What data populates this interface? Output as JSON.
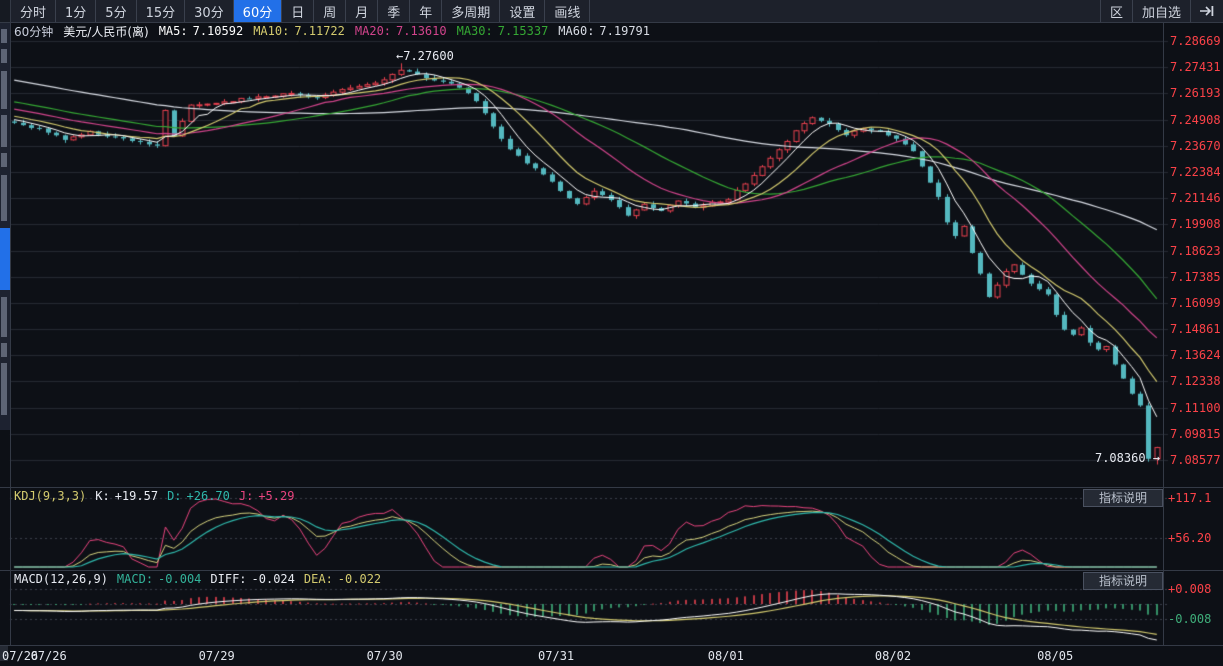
{
  "toolbar": {
    "left_items": [
      "分时",
      "1分",
      "5分",
      "15分",
      "30分",
      "60分",
      "日",
      "周",
      "月",
      "季",
      "年",
      "多周期",
      "设置",
      "画线"
    ],
    "active_item": "60分",
    "right_items": [
      "区",
      "加自选"
    ],
    "collapse_icon_name": "collapse-right-icon"
  },
  "chart_header": {
    "period": "60分钟",
    "symbol": "美元/人民币(离)",
    "ma_values": [
      {
        "label": "MA5:",
        "value": "7.10592",
        "color": "#ffffff"
      },
      {
        "label": "MA10:",
        "value": "7.11722",
        "color": "#d3ca6e"
      },
      {
        "label": "MA20:",
        "value": "7.13610",
        "color": "#d2448c"
      },
      {
        "label": "MA30:",
        "value": "7.15337",
        "color": "#35a834"
      },
      {
        "label": "MA60:",
        "value": "7.19791",
        "color": "#d8dce4"
      }
    ]
  },
  "price_axis": {
    "labels": [
      "7.28669",
      "7.27431",
      "7.26193",
      "7.24908",
      "7.23670",
      "7.22384",
      "7.21146",
      "7.19908",
      "7.18623",
      "7.17385",
      "7.16099",
      "7.14861",
      "7.13624",
      "7.12338",
      "7.11100",
      "7.09815",
      "7.08577"
    ],
    "color": "#fb4248"
  },
  "annotations": {
    "high": "7.27600",
    "low": "7.08360"
  },
  "kdj_panel": {
    "title": "KDJ(9,3,3)",
    "pairs": [
      {
        "label": "K:",
        "value": "+19.57",
        "color": "#e8ebf2"
      },
      {
        "label": "D:",
        "value": "+26.70",
        "color": "#2fb8ac"
      },
      {
        "label": "J:",
        "value": "+5.29",
        "color": "#e8447e"
      }
    ],
    "title_color": "#d3ca6e",
    "axis_labels": [
      {
        "text": "+117.1",
        "color": "#fb4248"
      },
      {
        "text": "+56.20",
        "color": "#fb4248"
      }
    ],
    "button": "指标说明"
  },
  "macd_panel": {
    "title": "MACD(12,26,9)",
    "pairs": [
      {
        "label": "MACD:",
        "value": "-0.004",
        "color": "#33b39a"
      },
      {
        "label": "DIFF:",
        "value": "-0.024",
        "color": "#e8ebf2"
      },
      {
        "label": "DEA:",
        "value": "-0.022",
        "color": "#d3ca6e"
      }
    ],
    "title_color": "#e8ebf2",
    "axis_labels": [
      {
        "text": "+0.008",
        "color": "#fb4248"
      },
      {
        "text": "-0.008",
        "color": "#3fae7a"
      }
    ],
    "button": "指标说明"
  },
  "time_axis": {
    "labels": [
      "07/26",
      "07/26",
      "07/29",
      "07/30",
      "07/31",
      "08/01",
      "08/02",
      "08/05"
    ]
  },
  "colors": {
    "up": "#e8414f",
    "down": "#54b8bf",
    "background": "#0d1016",
    "grid": "#262a33",
    "ma5": "#ffffff",
    "ma10": "#d3ca6e",
    "ma20": "#d2448c",
    "ma30": "#35a834",
    "ma60": "#d8dce4",
    "k": "#d6d37e",
    "d": "#2fb8ac",
    "j": "#e8447e",
    "diff": "#ffffff",
    "dea": "#d3ca6e",
    "hist_pos": "#e8414f",
    "hist_neg": "#3fae7a",
    "axis_red": "#fb4248",
    "accent_blue": "#2270e8"
  },
  "chart_data": {
    "type": "candlestick",
    "title": "美元/人民币(离) 60分钟",
    "interval": "60分",
    "x_dates": [
      "07/26",
      "07/26",
      "07/29",
      "07/30",
      "07/31",
      "08/01",
      "08/02",
      "08/05"
    ],
    "y_axis_ticks": [
      7.28669,
      7.27431,
      7.26193,
      7.24908,
      7.2367,
      7.22384,
      7.21146,
      7.19908,
      7.18623,
      7.17385,
      7.16099,
      7.14861,
      7.13624,
      7.12338,
      7.111,
      7.09815,
      7.08577
    ],
    "bars_total": 137,
    "bars_per_day": 20,
    "high_annotation": 7.276,
    "low_annotation": 7.0836,
    "close_anchors": [
      [
        0,
        7.2475
      ],
      [
        3,
        7.2445
      ],
      [
        6,
        7.2395
      ],
      [
        9,
        7.243
      ],
      [
        12,
        7.2405
      ],
      [
        15,
        7.2385
      ],
      [
        17,
        7.236
      ],
      [
        18,
        7.253
      ],
      [
        19,
        7.241
      ],
      [
        21,
        7.2555
      ],
      [
        25,
        7.2575
      ],
      [
        29,
        7.26
      ],
      [
        33,
        7.2615
      ],
      [
        36,
        7.2595
      ],
      [
        40,
        7.264
      ],
      [
        43,
        7.2665
      ],
      [
        46,
        7.2725
      ],
      [
        48,
        7.2705
      ],
      [
        51,
        7.267
      ],
      [
        53,
        7.2645
      ],
      [
        55,
        7.258
      ],
      [
        57,
        7.2455
      ],
      [
        59,
        7.235
      ],
      [
        61,
        7.228
      ],
      [
        63,
        7.223
      ],
      [
        65,
        7.215
      ],
      [
        67,
        7.2085
      ],
      [
        69,
        7.215
      ],
      [
        71,
        7.21
      ],
      [
        73,
        7.2035
      ],
      [
        75,
        7.208
      ],
      [
        77,
        7.205
      ],
      [
        79,
        7.2105
      ],
      [
        81,
        7.207
      ],
      [
        83,
        7.209
      ],
      [
        85,
        7.211
      ],
      [
        87,
        7.218
      ],
      [
        89,
        7.226
      ],
      [
        91,
        7.234
      ],
      [
        93,
        7.244
      ],
      [
        95,
        7.25
      ],
      [
        97,
        7.247
      ],
      [
        99,
        7.242
      ],
      [
        101,
        7.245
      ],
      [
        103,
        7.243
      ],
      [
        105,
        7.24
      ],
      [
        107,
        7.234
      ],
      [
        108,
        7.226
      ],
      [
        109,
        7.219
      ],
      [
        110,
        7.212
      ],
      [
        111,
        7.2
      ],
      [
        112,
        7.193
      ],
      [
        113,
        7.198
      ],
      [
        114,
        7.185
      ],
      [
        115,
        7.175
      ],
      [
        116,
        7.1645
      ],
      [
        117,
        7.17
      ],
      [
        118,
        7.1765
      ],
      [
        119,
        7.179
      ],
      [
        120,
        7.175
      ],
      [
        121,
        7.17
      ],
      [
        122,
        7.168
      ],
      [
        123,
        7.165
      ],
      [
        124,
        7.155
      ],
      [
        125,
        7.148
      ],
      [
        126,
        7.1455
      ],
      [
        127,
        7.1495
      ],
      [
        128,
        7.1425
      ],
      [
        129,
        7.1385
      ],
      [
        130,
        7.1405
      ],
      [
        131,
        7.132
      ],
      [
        132,
        7.125
      ],
      [
        133,
        7.118
      ],
      [
        134,
        7.1115
      ],
      [
        135,
        7.0862
      ],
      [
        136,
        7.0915
      ]
    ],
    "ma_last": {
      "MA5": 7.10592,
      "MA10": 7.11722,
      "MA20": 7.1361,
      "MA30": 7.15337,
      "MA60": 7.19791
    },
    "kdj_last": {
      "K": 19.57,
      "D": 26.7,
      "J": 5.29
    },
    "kdj_axis_ticks": [
      117.1,
      56.2
    ],
    "macd_last": {
      "MACD": -0.004,
      "DIFF": -0.024,
      "DEA": -0.022
    },
    "macd_axis_ticks": [
      0.008,
      -0.008
    ]
  }
}
